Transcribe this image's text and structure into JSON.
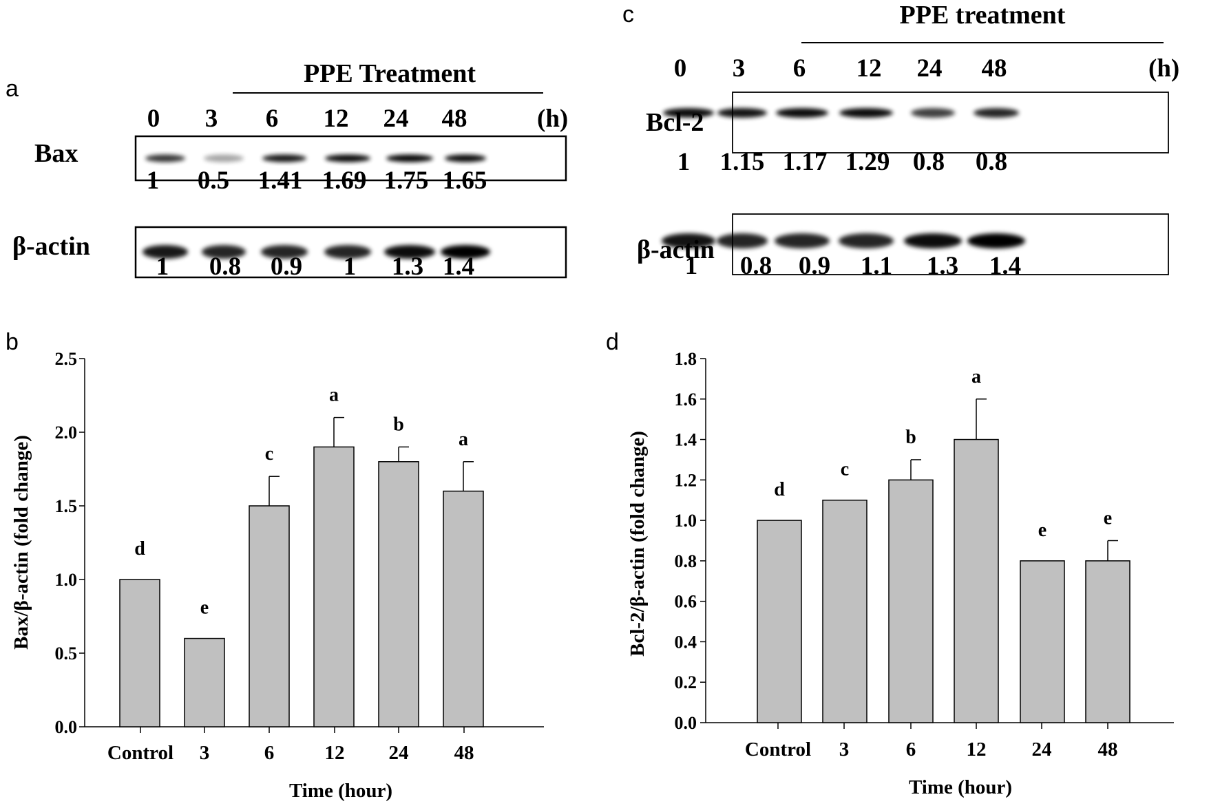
{
  "panels": {
    "a": {
      "letter": "a",
      "treatment_label": "PPE Treatment",
      "lanes": [
        "0",
        "3",
        "6",
        "12",
        "24",
        "48"
      ],
      "unit": "(h)",
      "protein": "Bax",
      "protein_values": [
        "1",
        "0.5",
        "1.41",
        "1.69",
        "1.75",
        "1.65"
      ],
      "loading_control": "β-actin",
      "loading_values": [
        "1",
        "0.8",
        "0.9",
        "1",
        "1.3",
        "1.4"
      ]
    },
    "c": {
      "letter": "c",
      "treatment_label": "PPE treatment",
      "lanes": [
        "0",
        "3",
        "6",
        "12",
        "24",
        "48"
      ],
      "unit": "(h)",
      "protein": "Bcl-2",
      "protein_values": [
        "1",
        "1.15",
        "1.17",
        "1.29",
        "0.8",
        "0.8"
      ],
      "loading_control": "β-actin",
      "loading_values": [
        "1",
        "0.8",
        "0.9",
        "1.1",
        "1.3",
        "1.4"
      ]
    }
  },
  "chart_data": [
    {
      "panel": "b",
      "type": "bar",
      "xlabel": "Time (hour)",
      "ylabel": "Bax/β-actin (fold change)",
      "categories": [
        "Control",
        "3",
        "6",
        "12",
        "24",
        "48"
      ],
      "values": [
        1.0,
        0.6,
        1.5,
        1.9,
        1.8,
        1.6
      ],
      "errors": [
        0,
        0,
        0.2,
        0.2,
        0.1,
        0.2
      ],
      "letters": [
        "d",
        "e",
        "c",
        "a",
        "b",
        "a"
      ],
      "ylim": [
        0,
        2.5
      ],
      "yticks": [
        "0.0",
        "0.5",
        "1.0",
        "1.5",
        "2.0",
        "2.5"
      ],
      "bar_color": "#c0c0c0"
    },
    {
      "panel": "d",
      "type": "bar",
      "xlabel": "Time (hour)",
      "ylabel": "Bcl-2/β-actin (fold change)",
      "categories": [
        "Control",
        "3",
        "6",
        "12",
        "24",
        "48"
      ],
      "values": [
        1.0,
        1.1,
        1.2,
        1.4,
        0.8,
        0.8
      ],
      "errors": [
        0,
        0,
        0.1,
        0.2,
        0,
        0.1
      ],
      "letters": [
        "d",
        "c",
        "b",
        "a",
        "e",
        "e"
      ],
      "ylim": [
        0,
        1.8
      ],
      "yticks": [
        "0.0",
        "0.2",
        "0.4",
        "0.6",
        "0.8",
        "1.0",
        "1.2",
        "1.4",
        "1.6",
        "1.8"
      ],
      "bar_color": "#c0c0c0"
    }
  ]
}
